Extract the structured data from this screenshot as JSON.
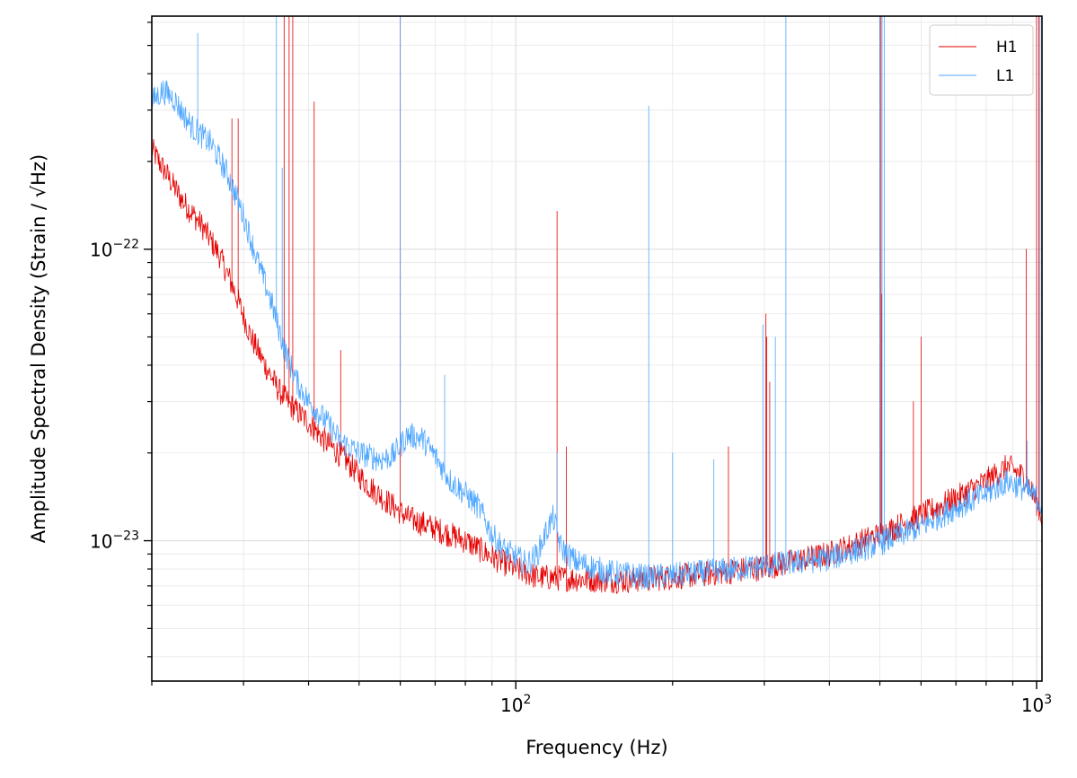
{
  "chart_data": {
    "type": "line",
    "xlabel": "Frequency (Hz)",
    "ylabel": "Amplitude Spectral Density (Strain / √Hz)",
    "x_scale": "log",
    "y_scale": "log",
    "xlim": [
      20,
      1024
    ],
    "ylim": [
      3.3e-24,
      6.3e-22
    ],
    "grid": true,
    "legend_position": "top-right",
    "x_tick_labels": [
      {
        "value": 100,
        "mantissa": "10",
        "exponent": "2"
      },
      {
        "value": 1000,
        "mantissa": "10",
        "exponent": "3"
      }
    ],
    "y_tick_labels": [
      {
        "value": 1e-22,
        "mantissa": "10",
        "exponent": "−22"
      },
      {
        "value": 1e-23,
        "mantissa": "10",
        "exponent": "−23"
      }
    ],
    "series": [
      {
        "name": "H1",
        "color": "#e60000",
        "baseline": [
          [
            20,
            2.2e-22
          ],
          [
            21,
            1.9e-22
          ],
          [
            22,
            1.65e-22
          ],
          [
            23,
            1.45e-22
          ],
          [
            25,
            1.2e-22
          ],
          [
            27,
            9.5e-23
          ],
          [
            29,
            7e-23
          ],
          [
            31,
            5e-23
          ],
          [
            33,
            4e-23
          ],
          [
            35,
            3.3e-23
          ],
          [
            37,
            2.9e-23
          ],
          [
            40,
            2.55e-23
          ],
          [
            43,
            2.2e-23
          ],
          [
            47,
            1.9e-23
          ],
          [
            52,
            1.55e-23
          ],
          [
            57,
            1.35e-23
          ],
          [
            62,
            1.2e-23
          ],
          [
            70,
            1.1e-23
          ],
          [
            80,
            1e-23
          ],
          [
            90,
            8.8e-24
          ],
          [
            100,
            8e-24
          ],
          [
            110,
            7.5e-24
          ],
          [
            130,
            7.4e-24
          ],
          [
            160,
            7.3e-24
          ],
          [
            200,
            7.5e-24
          ],
          [
            250,
            7.8e-24
          ],
          [
            300,
            8.1e-24
          ],
          [
            400,
            9e-24
          ],
          [
            500,
            1.05e-23
          ],
          [
            600,
            1.22e-23
          ],
          [
            700,
            1.4e-23
          ],
          [
            800,
            1.6e-23
          ],
          [
            880,
            1.8e-23
          ],
          [
            950,
            1.65e-23
          ],
          [
            1000,
            1.35e-23
          ],
          [
            1024,
            1.2e-23
          ]
        ],
        "peaks": [
          [
            28.5,
            2.8e-22
          ],
          [
            29.3,
            2.8e-22
          ],
          [
            35.9,
            7e-22
          ],
          [
            36.7,
            7e-22
          ],
          [
            37.3,
            7e-22
          ],
          [
            41.0,
            3.2e-22
          ],
          [
            46.1,
            4.5e-23
          ],
          [
            60.0,
            7e-22
          ],
          [
            120.0,
            1.35e-22
          ],
          [
            125.0,
            2.1e-23
          ],
          [
            256.0,
            2.1e-23
          ],
          [
            302.2,
            6e-23
          ],
          [
            303.3,
            5e-23
          ],
          [
            307.3,
            3.5e-23
          ],
          [
            500.0,
            7e-22
          ],
          [
            502.5,
            7e-22
          ],
          [
            504.0,
            7e-23
          ],
          [
            580.0,
            3e-23
          ],
          [
            600.0,
            5e-23
          ],
          [
            955.0,
            1e-22
          ],
          [
            1000,
            7e-22
          ],
          [
            1010,
            7e-22
          ]
        ]
      },
      {
        "name": "L1",
        "color": "#4da6ff",
        "baseline": [
          [
            20,
            3.2e-22
          ],
          [
            21,
            3.5e-22
          ],
          [
            22,
            3.3e-22
          ],
          [
            23,
            2.9e-22
          ],
          [
            24,
            2.6e-22
          ],
          [
            26,
            2.3e-22
          ],
          [
            28,
            1.8e-22
          ],
          [
            30,
            1.3e-22
          ],
          [
            32,
            9e-23
          ],
          [
            34,
            6.5e-23
          ],
          [
            36,
            4.5e-23
          ],
          [
            38,
            3.5e-23
          ],
          [
            40,
            3e-23
          ],
          [
            43,
            2.6e-23
          ],
          [
            46,
            2.2e-23
          ],
          [
            50,
            2e-23
          ],
          [
            55,
            1.9e-23
          ],
          [
            58,
            1.95e-23
          ],
          [
            62,
            2.3e-23
          ],
          [
            66,
            2.25e-23
          ],
          [
            70,
            1.95e-23
          ],
          [
            75,
            1.6e-23
          ],
          [
            80,
            1.45e-23
          ],
          [
            85,
            1.3e-23
          ],
          [
            90,
            1.05e-23
          ],
          [
            95,
            9.3e-24
          ],
          [
            100,
            8.8e-24
          ],
          [
            105,
            8.3e-24
          ],
          [
            110,
            9e-24
          ],
          [
            115,
            1.1e-23
          ],
          [
            118,
            1.2e-23
          ],
          [
            122,
            9.5e-24
          ],
          [
            130,
            8.5e-24
          ],
          [
            150,
            7.8e-24
          ],
          [
            180,
            7.5e-24
          ],
          [
            200,
            7.6e-24
          ],
          [
            250,
            7.9e-24
          ],
          [
            300,
            8.2e-24
          ],
          [
            400,
            8.7e-24
          ],
          [
            500,
            9.8e-24
          ],
          [
            600,
            1.12e-23
          ],
          [
            700,
            1.3e-23
          ],
          [
            800,
            1.45e-23
          ],
          [
            880,
            1.6e-23
          ],
          [
            950,
            1.5e-23
          ],
          [
            1000,
            1.4e-23
          ],
          [
            1024,
            1.3e-23
          ]
        ],
        "peaks": [
          [
            24.5,
            5.5e-22
          ],
          [
            34.7,
            7e-22
          ],
          [
            35.6,
            1.9e-22
          ],
          [
            60.0,
            7e-22
          ],
          [
            73.0,
            3.7e-23
          ],
          [
            120.0,
            2e-23
          ],
          [
            180.0,
            3.1e-22
          ],
          [
            200.0,
            2e-23
          ],
          [
            240.0,
            1.9e-23
          ],
          [
            298.0,
            5.5e-23
          ],
          [
            315.0,
            5e-23
          ],
          [
            330.0,
            7e-22
          ],
          [
            500.0,
            7e-22
          ],
          [
            505.0,
            7e-22
          ],
          [
            510.0,
            7e-22
          ],
          [
            960.0,
            2.2e-23
          ],
          [
            1015,
            7e-22
          ]
        ]
      }
    ]
  }
}
